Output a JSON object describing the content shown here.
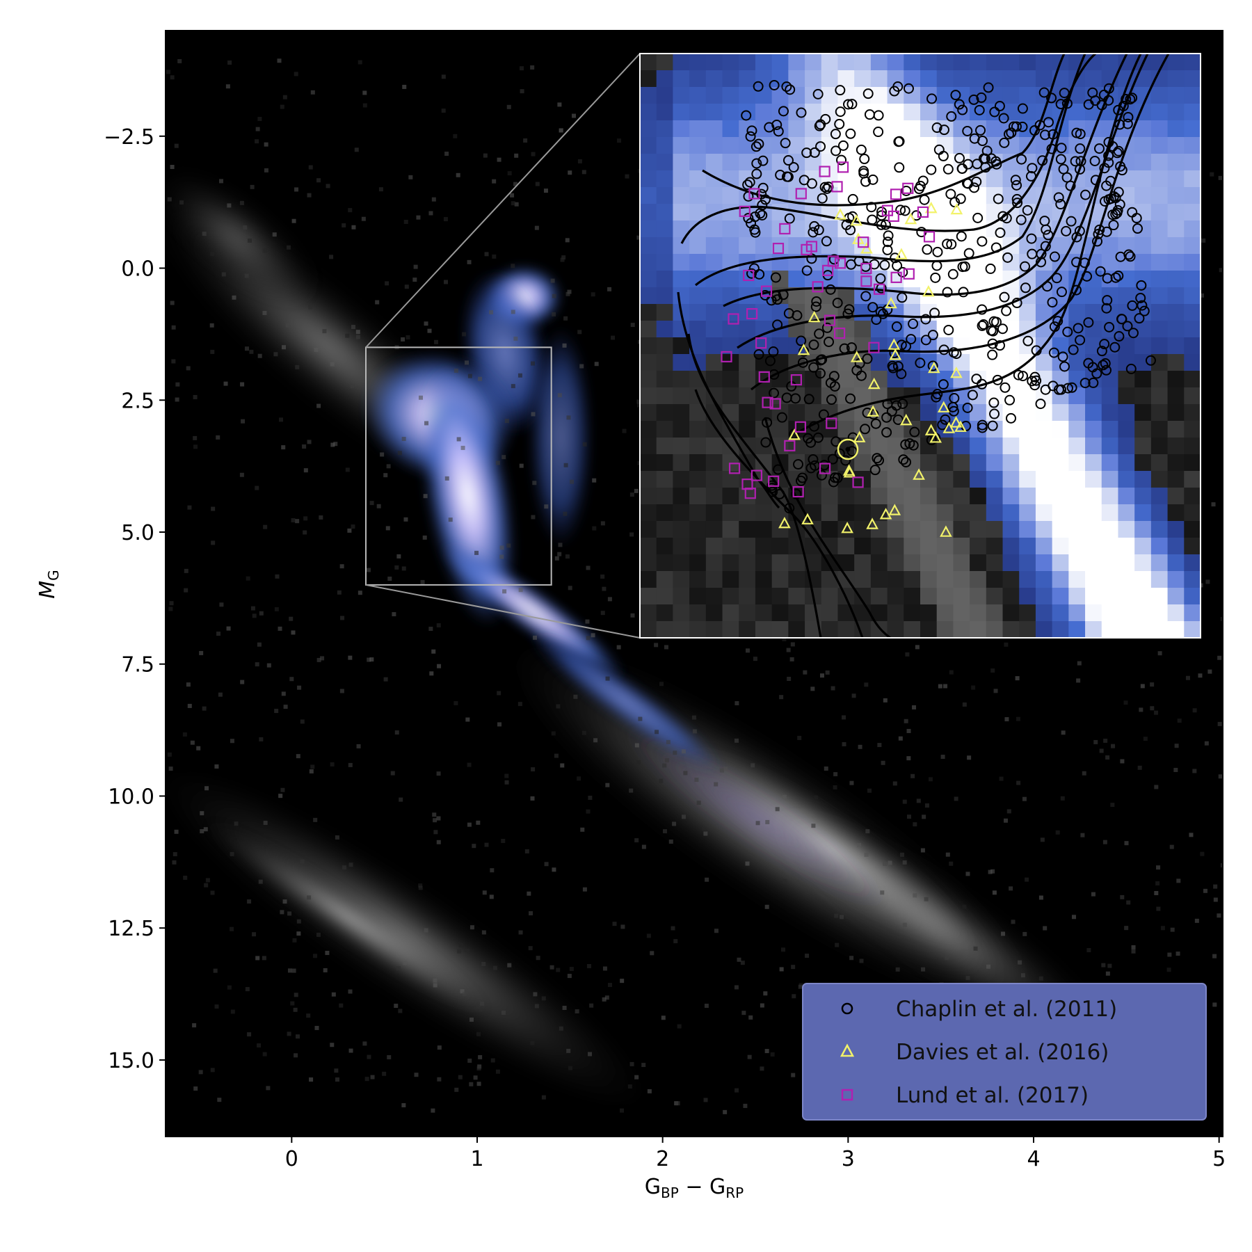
{
  "chart_data": {
    "type": "scatter",
    "title": "",
    "xlabel": "G_BP − G_RP",
    "xlabel_parts": {
      "main1": "G",
      "sub1": "BP",
      "minus": " − ",
      "main2": "G",
      "sub2": "RP"
    },
    "ylabel": "M_G",
    "ylabel_parts": {
      "main": "M",
      "sub": "G"
    },
    "xlim": [
      -0.68,
      5.02
    ],
    "ylim": [
      16.45,
      -4.5
    ],
    "y_inverted": true,
    "xticks": [
      0,
      1,
      2,
      3,
      4,
      5
    ],
    "xtick_labels": [
      "0",
      "1",
      "2",
      "3",
      "4",
      "5"
    ],
    "yticks": [
      -2.5,
      0.0,
      2.5,
      5.0,
      7.5,
      10.0,
      12.5,
      15.0
    ],
    "ytick_labels": [
      "−2.5",
      "0.0",
      "2.5",
      "5.0",
      "7.5",
      "10.0",
      "12.5",
      "15.0"
    ],
    "background": "density histogram of Gaia stars (grey = all stars, blue–white colormap = asteroseismic sample region)",
    "zoom_box": {
      "x": [
        0.4,
        1.4
      ],
      "y": [
        1.5,
        6.0
      ]
    },
    "legend": {
      "position": "lower-right",
      "background": "#5c68b0"
    },
    "series": [
      {
        "name": "Chaplin et al. (2011)",
        "marker": "circle",
        "color": "#000000",
        "fill": "none"
      },
      {
        "name": "Davies et al. (2016)",
        "marker": "triangle",
        "color": "#f2f26a",
        "fill": "none"
      },
      {
        "name": "Lund et al. (2017)",
        "marker": "square",
        "color": "#b020b0",
        "fill": "none"
      }
    ],
    "sun_marker": {
      "symbol": "circle-dot",
      "color": "#f2f26a",
      "x": 0.82,
      "y": 4.67
    }
  }
}
